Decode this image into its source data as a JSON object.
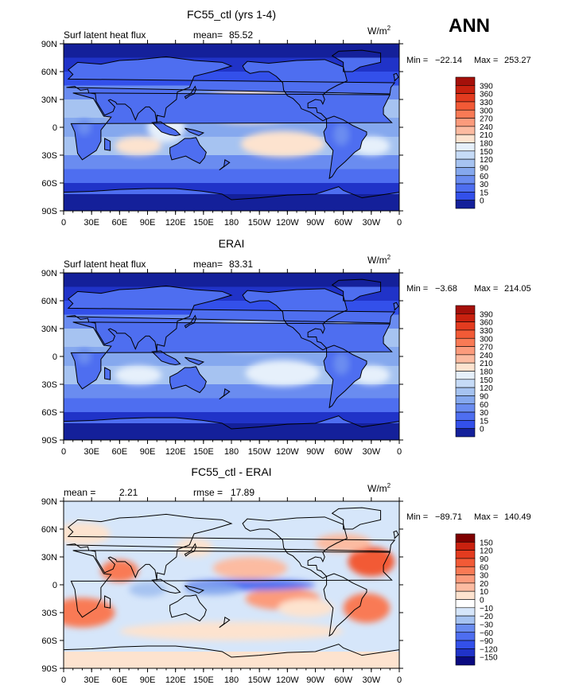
{
  "season": "ANN",
  "colors": {
    "warm": [
      "#fde3cf",
      "#fcbba1",
      "#fc9b7c",
      "#f97a55",
      "#f25a36",
      "#e33b1f",
      "#c9210f",
      "#a5100a",
      "#7f0000"
    ],
    "cool": [
      "#e6f0fb",
      "#c6dbf7",
      "#a6c3f1",
      "#85a8ee",
      "#6a8cf0",
      "#4e6ef0",
      "#3350ea",
      "#2033c8",
      "#14209a",
      "#0a0a80"
    ],
    "land_outline": "#000000"
  },
  "panels": [
    {
      "title": "FC55_ctl (yrs 1-4)",
      "left_label": "Surf latent heat flux",
      "stat1_label": "mean=",
      "stat1_value": "85.52",
      "stat2_label": "",
      "stat2_value": "",
      "units": "W/m",
      "units_exp": "2",
      "min_label": "Min =",
      "min_value": "−22.14",
      "max_label": "Max =",
      "max_value": "253.27",
      "colorbar_labels": [
        "390",
        "360",
        "330",
        "300",
        "270",
        "240",
        "210",
        "180",
        "150",
        "120",
        "90",
        "60",
        "30",
        "15",
        "0"
      ],
      "palette": [
        "#a5100a",
        "#c9210f",
        "#e33b1f",
        "#f25a36",
        "#f97a55",
        "#fc9b7c",
        "#fcbba1",
        "#fde3cf",
        "#e6f0fb",
        "#c6dbf7",
        "#a6c3f1",
        "#85a8ee",
        "#6a8cf0",
        "#4e6ef0",
        "#3350ea",
        "#14209a"
      ]
    },
    {
      "title": "ERAI",
      "left_label": "Surf latent heat flux",
      "stat1_label": "mean=",
      "stat1_value": "83.31",
      "stat2_label": "",
      "stat2_value": "",
      "units": "W/m",
      "units_exp": "2",
      "min_label": "Min =",
      "min_value": "−3.68",
      "max_label": "Max =",
      "max_value": "214.05",
      "colorbar_labels": [
        "390",
        "360",
        "330",
        "300",
        "270",
        "240",
        "210",
        "180",
        "150",
        "120",
        "90",
        "60",
        "30",
        "15",
        "0"
      ],
      "palette": [
        "#a5100a",
        "#c9210f",
        "#e33b1f",
        "#f25a36",
        "#f97a55",
        "#fc9b7c",
        "#fcbba1",
        "#fde3cf",
        "#e6f0fb",
        "#c6dbf7",
        "#a6c3f1",
        "#85a8ee",
        "#6a8cf0",
        "#4e6ef0",
        "#3350ea",
        "#14209a"
      ]
    },
    {
      "title": "FC55_ctl - ERAI",
      "left_label": "mean =",
      "stat1_label": "",
      "stat1_value": "2.21",
      "stat2_label": "rmse =",
      "stat2_value": "17.89",
      "units": "W/m",
      "units_exp": "2",
      "min_label": "Min =",
      "min_value": "−89.71",
      "max_label": "Max =",
      "max_value": "140.49",
      "colorbar_labels": [
        "150",
        "120",
        "90",
        "60",
        "30",
        "20",
        "10",
        "0",
        "−10",
        "−20",
        "−30",
        "−60",
        "−90",
        "−120",
        "−150"
      ],
      "palette": [
        "#7f0000",
        "#c9210f",
        "#e33b1f",
        "#f25a36",
        "#f97a55",
        "#fc9b7c",
        "#fcbba1",
        "#fde3cf",
        "#ffffff",
        "#d6e6fa",
        "#a6c3f1",
        "#6a8cf0",
        "#4e6ef0",
        "#3350ea",
        "#2033c8",
        "#0a0a80"
      ]
    }
  ],
  "chart_data": [
    {
      "type": "heatmap",
      "title": "FC55_ctl (yrs 1-4)",
      "field": "Surf latent heat flux",
      "units": "W/m2",
      "mean": 85.52,
      "min": -22.14,
      "max": 253.27,
      "xticks": [
        "0",
        "30E",
        "60E",
        "90E",
        "120E",
        "150E",
        "180",
        "150W",
        "120W",
        "90W",
        "60W",
        "30W",
        "0"
      ],
      "yticks": [
        "90N",
        "60N",
        "30N",
        "0",
        "30S",
        "60S",
        "90S"
      ],
      "xlim": [
        0,
        360
      ],
      "ylim": [
        -90,
        90
      ],
      "levels": [
        0,
        15,
        30,
        60,
        90,
        120,
        150,
        180,
        210,
        240,
        270,
        300,
        330,
        360,
        390
      ]
    },
    {
      "type": "heatmap",
      "title": "ERAI",
      "field": "Surf latent heat flux",
      "units": "W/m2",
      "mean": 83.31,
      "min": -3.68,
      "max": 214.05,
      "xticks": [
        "0",
        "30E",
        "60E",
        "90E",
        "120E",
        "150E",
        "180",
        "150W",
        "120W",
        "90W",
        "60W",
        "30W",
        "0"
      ],
      "yticks": [
        "90N",
        "60N",
        "30N",
        "0",
        "30S",
        "60S",
        "90S"
      ],
      "xlim": [
        0,
        360
      ],
      "ylim": [
        -90,
        90
      ],
      "levels": [
        0,
        15,
        30,
        60,
        90,
        120,
        150,
        180,
        210,
        240,
        270,
        300,
        330,
        360,
        390
      ]
    },
    {
      "type": "heatmap",
      "title": "FC55_ctl - ERAI",
      "units": "W/m2",
      "mean": 2.21,
      "rmse": 17.89,
      "min": -89.71,
      "max": 140.49,
      "xticks": [
        "0",
        "30E",
        "60E",
        "90E",
        "120E",
        "150E",
        "180",
        "150W",
        "120W",
        "90W",
        "60W",
        "30W",
        "0"
      ],
      "yticks": [
        "90N",
        "60N",
        "30N",
        "0",
        "30S",
        "60S",
        "90S"
      ],
      "xlim": [
        0,
        360
      ],
      "ylim": [
        -90,
        90
      ],
      "levels": [
        -150,
        -120,
        -90,
        -60,
        -30,
        -20,
        -10,
        0,
        10,
        20,
        30,
        60,
        90,
        120,
        150
      ]
    }
  ]
}
